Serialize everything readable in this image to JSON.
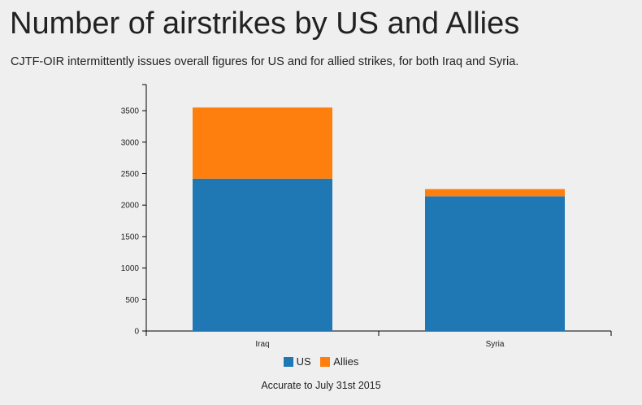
{
  "header": {
    "title": "Number of airstrikes by US and Allies",
    "subtitle": "CJTF-OIR intermittently issues overall figures for US and for allied strikes, for both Iraq and Syria."
  },
  "chart_data": {
    "type": "bar",
    "stacked": true,
    "categories": [
      "Iraq",
      "Syria"
    ],
    "series": [
      {
        "name": "US",
        "color": "#1f77b4",
        "values": [
          2420,
          2140
        ]
      },
      {
        "name": "Allies",
        "color": "#ff7f0e",
        "values": [
          1130,
          115
        ]
      }
    ],
    "ylim": [
      0,
      3500
    ],
    "yticks": [
      0,
      500,
      1000,
      1500,
      2000,
      2500,
      3000,
      3500
    ],
    "ytick_labels": [
      "0",
      "500",
      "1000",
      "1500",
      "2000",
      "2500",
      "3000",
      "3500"
    ],
    "grid": false,
    "legend": "bottom-center"
  },
  "footnote": "Accurate to July 31st 2015"
}
